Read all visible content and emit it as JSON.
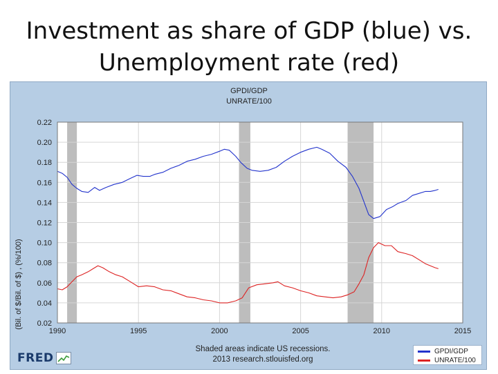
{
  "slide": {
    "title_line1": "Investment as share of GDP (blue) vs.",
    "title_line2": "Unemployment rate (red)"
  },
  "chart_data": {
    "type": "line",
    "series_labels_top": [
      "GPDI/GDP",
      "UNRATE/100"
    ],
    "ylabel": "(Bil. of $/Bil. of $) , (%/100)",
    "xlim": [
      1990,
      2015
    ],
    "ylim": [
      0.02,
      0.22
    ],
    "x_ticks": [
      1990,
      1995,
      2000,
      2005,
      2010,
      2015
    ],
    "x_tick_labels": [
      "1990",
      "1995",
      "2000",
      "2005",
      "2010",
      "2015"
    ],
    "y_ticks": [
      0.02,
      0.04,
      0.06,
      0.08,
      0.1,
      0.12,
      0.14,
      0.16,
      0.18,
      0.2,
      0.22
    ],
    "y_tick_labels": [
      "0.02",
      "0.04",
      "0.06",
      "0.08",
      "0.10",
      "0.12",
      "0.14",
      "0.16",
      "0.18",
      "0.20",
      "0.22"
    ],
    "grid": true,
    "recessions": [
      [
        1990.6,
        1991.2
      ],
      [
        2001.2,
        2001.9
      ],
      [
        2007.9,
        2009.5
      ]
    ],
    "series": [
      {
        "name": "GPDI/GDP",
        "color": "#2233cc",
        "points": [
          [
            1990.0,
            0.171
          ],
          [
            1990.3,
            0.169
          ],
          [
            1990.6,
            0.165
          ],
          [
            1990.9,
            0.158
          ],
          [
            1991.2,
            0.154
          ],
          [
            1991.5,
            0.151
          ],
          [
            1991.9,
            0.15
          ],
          [
            1992.3,
            0.155
          ],
          [
            1992.6,
            0.152
          ],
          [
            1993.0,
            0.155
          ],
          [
            1993.5,
            0.158
          ],
          [
            1994.0,
            0.16
          ],
          [
            1994.5,
            0.164
          ],
          [
            1994.9,
            0.167
          ],
          [
            1995.3,
            0.166
          ],
          [
            1995.7,
            0.166
          ],
          [
            1996.0,
            0.168
          ],
          [
            1996.5,
            0.17
          ],
          [
            1997.0,
            0.174
          ],
          [
            1997.5,
            0.177
          ],
          [
            1998.0,
            0.181
          ],
          [
            1998.5,
            0.183
          ],
          [
            1999.0,
            0.186
          ],
          [
            1999.5,
            0.188
          ],
          [
            2000.0,
            0.191
          ],
          [
            2000.3,
            0.193
          ],
          [
            2000.6,
            0.192
          ],
          [
            2001.0,
            0.186
          ],
          [
            2001.3,
            0.18
          ],
          [
            2001.7,
            0.174
          ],
          [
            2002.0,
            0.172
          ],
          [
            2002.5,
            0.171
          ],
          [
            2003.0,
            0.172
          ],
          [
            2003.5,
            0.175
          ],
          [
            2004.0,
            0.181
          ],
          [
            2004.5,
            0.186
          ],
          [
            2005.0,
            0.19
          ],
          [
            2005.5,
            0.193
          ],
          [
            2006.0,
            0.195
          ],
          [
            2006.3,
            0.193
          ],
          [
            2006.8,
            0.189
          ],
          [
            2007.3,
            0.181
          ],
          [
            2007.8,
            0.175
          ],
          [
            2008.2,
            0.166
          ],
          [
            2008.6,
            0.154
          ],
          [
            2008.9,
            0.141
          ],
          [
            2009.2,
            0.128
          ],
          [
            2009.5,
            0.124
          ],
          [
            2009.9,
            0.126
          ],
          [
            2010.3,
            0.133
          ],
          [
            2010.7,
            0.136
          ],
          [
            2011.0,
            0.139
          ],
          [
            2011.5,
            0.142
          ],
          [
            2011.9,
            0.147
          ],
          [
            2012.3,
            0.149
          ],
          [
            2012.7,
            0.151
          ],
          [
            2013.0,
            0.151
          ],
          [
            2013.3,
            0.152
          ],
          [
            2013.5,
            0.153
          ]
        ]
      },
      {
        "name": "UNRATE/100",
        "color": "#dd2222",
        "points": [
          [
            1990.0,
            0.054
          ],
          [
            1990.3,
            0.053
          ],
          [
            1990.6,
            0.056
          ],
          [
            1990.9,
            0.061
          ],
          [
            1991.2,
            0.066
          ],
          [
            1991.5,
            0.068
          ],
          [
            1991.9,
            0.071
          ],
          [
            1992.2,
            0.074
          ],
          [
            1992.5,
            0.077
          ],
          [
            1992.8,
            0.075
          ],
          [
            1993.2,
            0.071
          ],
          [
            1993.6,
            0.068
          ],
          [
            1994.0,
            0.066
          ],
          [
            1994.5,
            0.061
          ],
          [
            1995.0,
            0.056
          ],
          [
            1995.5,
            0.057
          ],
          [
            1996.0,
            0.056
          ],
          [
            1996.5,
            0.053
          ],
          [
            1997.0,
            0.052
          ],
          [
            1997.5,
            0.049
          ],
          [
            1998.0,
            0.046
          ],
          [
            1998.5,
            0.045
          ],
          [
            1999.0,
            0.043
          ],
          [
            1999.5,
            0.042
          ],
          [
            2000.0,
            0.04
          ],
          [
            2000.5,
            0.04
          ],
          [
            2001.0,
            0.042
          ],
          [
            2001.4,
            0.045
          ],
          [
            2001.8,
            0.055
          ],
          [
            2002.3,
            0.058
          ],
          [
            2002.8,
            0.059
          ],
          [
            2003.3,
            0.06
          ],
          [
            2003.6,
            0.061
          ],
          [
            2004.0,
            0.057
          ],
          [
            2004.5,
            0.055
          ],
          [
            2005.0,
            0.052
          ],
          [
            2005.5,
            0.05
          ],
          [
            2006.0,
            0.047
          ],
          [
            2006.5,
            0.046
          ],
          [
            2007.0,
            0.045
          ],
          [
            2007.5,
            0.046
          ],
          [
            2007.9,
            0.048
          ],
          [
            2008.3,
            0.051
          ],
          [
            2008.6,
            0.059
          ],
          [
            2008.9,
            0.068
          ],
          [
            2009.2,
            0.085
          ],
          [
            2009.5,
            0.095
          ],
          [
            2009.8,
            0.1
          ],
          [
            2010.2,
            0.097
          ],
          [
            2010.6,
            0.097
          ],
          [
            2011.0,
            0.091
          ],
          [
            2011.5,
            0.089
          ],
          [
            2011.9,
            0.087
          ],
          [
            2012.3,
            0.083
          ],
          [
            2012.7,
            0.079
          ],
          [
            2013.0,
            0.077
          ],
          [
            2013.3,
            0.075
          ],
          [
            2013.5,
            0.074
          ]
        ]
      }
    ]
  },
  "footer": {
    "note_line1": "Shaded areas indicate US recessions.",
    "note_line2": "2013 research.stlouisfed.org",
    "logo_text": "FRED",
    "legend": [
      {
        "label": "GPDI/GDP",
        "color": "#2233cc"
      },
      {
        "label": "UNRATE/100",
        "color": "#dd2222"
      }
    ]
  }
}
